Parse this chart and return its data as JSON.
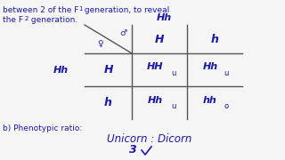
{
  "background_color": "#f5f5f5",
  "text_color": "#1a1aaa",
  "grid_color": "#555555",
  "top_line1_a": "between 2 of the F",
  "top_line1_sub": "1",
  "top_line1_b": " generation, to reveal",
  "top_line2_a": "the F",
  "top_line2_sub": "2",
  "top_line2_b": " generation.",
  "punnett_top_label": "Hh",
  "col1": "H",
  "col2": "h",
  "left_label": "Hh",
  "row1_label": "H",
  "row2_label": "h",
  "cell_r1c1": "HH",
  "cell_r1c1_note": "u",
  "cell_r1c2": "Hh",
  "cell_r1c2_note": "u",
  "cell_r2c1": "Hh",
  "cell_r2c1_note": "u",
  "cell_r2c2": "hh",
  "cell_r2c2_note": "o",
  "pheno_label": "b) Phenotypic ratio:",
  "pheno_text": "Unicorn : Dicorn",
  "pheno_num": "3"
}
